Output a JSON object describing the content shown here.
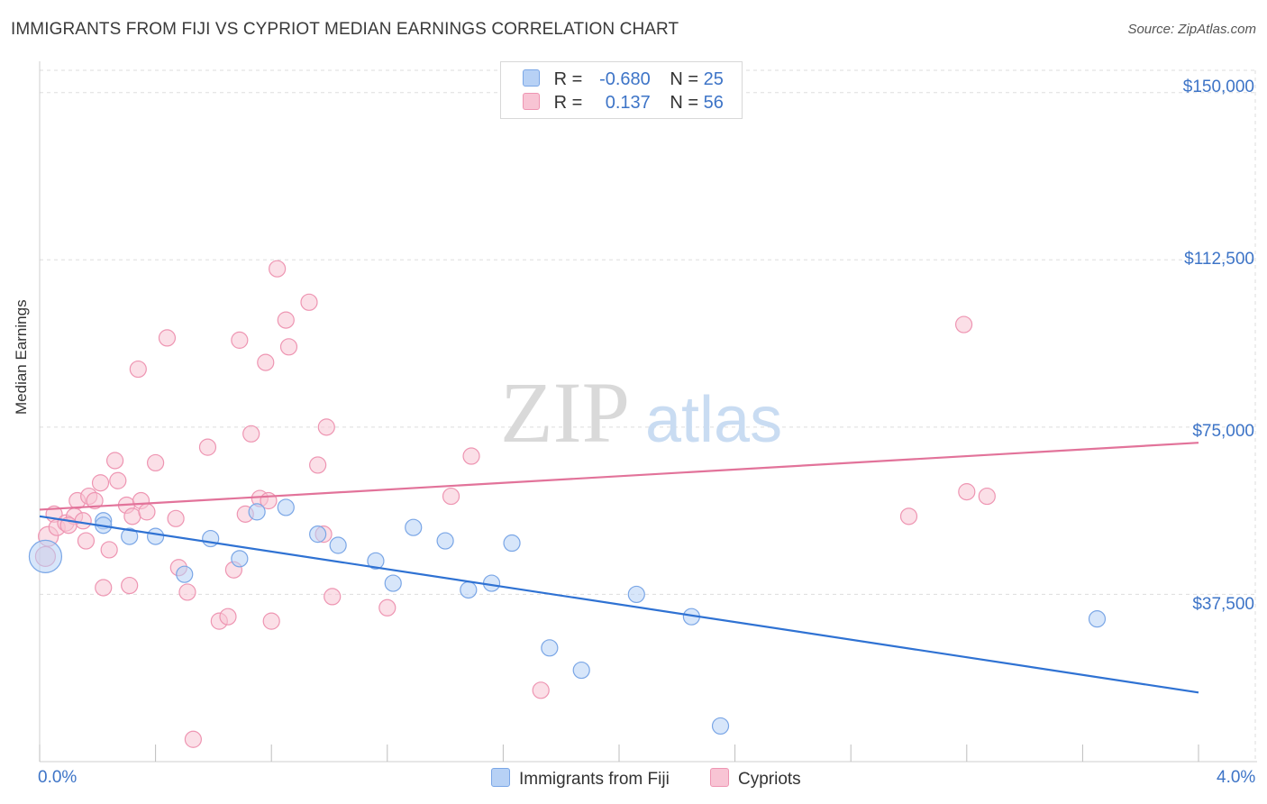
{
  "header": {
    "title": "IMMIGRANTS FROM FIJI VS CYPRIOT MEDIAN EARNINGS CORRELATION CHART",
    "source": "Source: ZipAtlas.com"
  },
  "watermark": {
    "zip": "ZIP",
    "atlas": "atlas"
  },
  "legend": {
    "fiji": {
      "r_label": "R =",
      "r_value": "-0.680",
      "n_label": "N =",
      "n_value": "25"
    },
    "cypriot": {
      "r_label": "R =",
      "r_value": "0.137",
      "n_label": "N =",
      "n_value": "56"
    }
  },
  "bottom_legend": {
    "fiji": "Immigrants from Fiji",
    "cypriot": "Cypriots"
  },
  "colors": {
    "fiji_fill": "#b7d1f5",
    "fiji_stroke": "#7aa6e6",
    "fiji_line": "#2f72d3",
    "cypriot_fill": "#f8c4d4",
    "cypriot_stroke": "#ee95b2",
    "cypriot_line": "#e2739a",
    "tick_text": "#3d74c7",
    "grid": "#dddddd"
  },
  "chart_data": {
    "type": "scatter",
    "title": "IMMIGRANTS FROM FIJI VS CYPRIOT MEDIAN EARNINGS CORRELATION CHART",
    "xlabel": "",
    "ylabel": "Median Earnings",
    "xlim": [
      0.0,
      4.0
    ],
    "ylim": [
      0,
      155000
    ],
    "x_tick_labels": [
      "0.0%",
      "4.0%"
    ],
    "y_ticks": [
      37500,
      75000,
      112500,
      150000
    ],
    "y_tick_labels": [
      "$37,500",
      "$75,000",
      "$112,500",
      "$150,000"
    ],
    "grid": true,
    "legend_position": "top-center",
    "series": [
      {
        "name": "Immigrants from Fiji",
        "points": [
          [
            0.02,
            46000,
            18
          ],
          [
            0.22,
            54000,
            9
          ],
          [
            0.31,
            50500,
            9
          ],
          [
            0.4,
            50500,
            9
          ],
          [
            0.5,
            42000,
            9
          ],
          [
            0.59,
            50000,
            9
          ],
          [
            0.69,
            45500,
            9
          ],
          [
            0.75,
            56000,
            9
          ],
          [
            0.85,
            57000,
            9
          ],
          [
            0.96,
            51000,
            9
          ],
          [
            1.03,
            48500,
            9
          ],
          [
            1.16,
            45000,
            9
          ],
          [
            1.22,
            40000,
            9
          ],
          [
            1.29,
            52500,
            9
          ],
          [
            1.4,
            49500,
            9
          ],
          [
            1.48,
            38500,
            9
          ],
          [
            1.56,
            40000,
            9
          ],
          [
            1.63,
            49000,
            9
          ],
          [
            1.76,
            25500,
            9
          ],
          [
            1.87,
            20500,
            9
          ],
          [
            2.06,
            37500,
            9
          ],
          [
            2.25,
            32500,
            9
          ],
          [
            2.35,
            8000,
            9
          ],
          [
            3.65,
            32000,
            9
          ],
          [
            0.22,
            53000,
            9
          ]
        ],
        "trend": {
          "x": [
            0.0,
            4.0
          ],
          "y": [
            55000,
            15500
          ]
        }
      },
      {
        "name": "Cypriots",
        "points": [
          [
            0.02,
            46000,
            11
          ],
          [
            0.03,
            50500,
            11
          ],
          [
            0.05,
            55500,
            9
          ],
          [
            0.06,
            52500,
            9
          ],
          [
            0.09,
            53500,
            9
          ],
          [
            0.12,
            55000,
            9
          ],
          [
            0.13,
            58500,
            9
          ],
          [
            0.15,
            54000,
            9
          ],
          [
            0.16,
            49500,
            9
          ],
          [
            0.17,
            59500,
            9
          ],
          [
            0.19,
            58500,
            9
          ],
          [
            0.21,
            62500,
            9
          ],
          [
            0.22,
            39000,
            9
          ],
          [
            0.24,
            47500,
            9
          ],
          [
            0.26,
            67500,
            9
          ],
          [
            0.27,
            63000,
            9
          ],
          [
            0.3,
            57500,
            9
          ],
          [
            0.31,
            39500,
            9
          ],
          [
            0.32,
            55000,
            9
          ],
          [
            0.34,
            88000,
            9
          ],
          [
            0.35,
            58500,
            9
          ],
          [
            0.37,
            56000,
            9
          ],
          [
            0.4,
            67000,
            9
          ],
          [
            0.44,
            95000,
            9
          ],
          [
            0.47,
            54500,
            9
          ],
          [
            0.48,
            43500,
            9
          ],
          [
            0.51,
            38000,
            9
          ],
          [
            0.53,
            5000,
            9
          ],
          [
            0.58,
            70500,
            9
          ],
          [
            0.62,
            31500,
            9
          ],
          [
            0.65,
            32500,
            9
          ],
          [
            0.67,
            43000,
            9
          ],
          [
            0.69,
            94500,
            9
          ],
          [
            0.71,
            55500,
            9
          ],
          [
            0.73,
            73500,
            9
          ],
          [
            0.76,
            59000,
            9
          ],
          [
            0.78,
            89500,
            9
          ],
          [
            0.79,
            58500,
            9
          ],
          [
            0.8,
            31500,
            9
          ],
          [
            0.82,
            110500,
            9
          ],
          [
            0.85,
            99000,
            9
          ],
          [
            0.86,
            93000,
            9
          ],
          [
            0.93,
            103000,
            9
          ],
          [
            0.96,
            66500,
            9
          ],
          [
            0.98,
            51000,
            9
          ],
          [
            0.99,
            75000,
            9
          ],
          [
            1.01,
            37000,
            9
          ],
          [
            1.2,
            34500,
            9
          ],
          [
            1.42,
            59500,
            9
          ],
          [
            1.49,
            68500,
            9
          ],
          [
            1.73,
            16000,
            9
          ],
          [
            3.0,
            55000,
            9
          ],
          [
            3.19,
            98000,
            9
          ],
          [
            3.2,
            60500,
            9
          ],
          [
            3.27,
            59500,
            9
          ],
          [
            0.1,
            53000,
            9
          ]
        ],
        "trend": {
          "x": [
            0.0,
            4.0
          ],
          "y": [
            56500,
            71500
          ]
        }
      }
    ]
  }
}
